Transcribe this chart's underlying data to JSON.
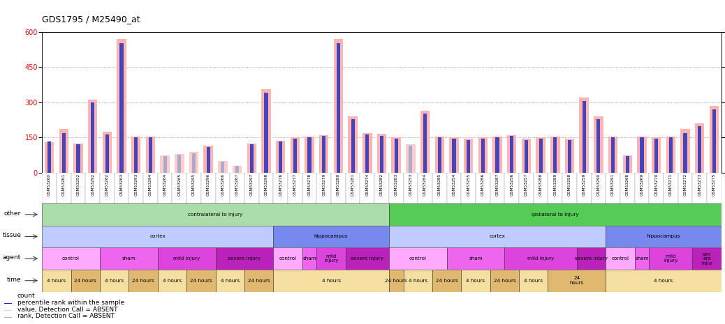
{
  "title": "GDS1795 / M25490_at",
  "samples": [
    "GSM53260",
    "GSM53261",
    "GSM53252",
    "GSM53292",
    "GSM53262",
    "GSM53263",
    "GSM53293",
    "GSM53294",
    "GSM53264",
    "GSM53265",
    "GSM53295",
    "GSM53296",
    "GSM53266",
    "GSM53267",
    "GSM53297",
    "GSM53298",
    "GSM53276",
    "GSM53277",
    "GSM53278",
    "GSM53279",
    "GSM53280",
    "GSM53281",
    "GSM53274",
    "GSM53282",
    "GSM53283",
    "GSM53253",
    "GSM53284",
    "GSM53285",
    "GSM53254",
    "GSM53255",
    "GSM53286",
    "GSM53287",
    "GSM53256",
    "GSM53257",
    "GSM53288",
    "GSM53289",
    "GSM53258",
    "GSM53259",
    "GSM53290",
    "GSM53291",
    "GSM53268",
    "GSM53269",
    "GSM53270",
    "GSM53271",
    "GSM53272",
    "GSM53273",
    "GSM53275"
  ],
  "values": [
    130,
    185,
    125,
    310,
    175,
    570,
    155,
    155,
    75,
    80,
    90,
    115,
    50,
    30,
    125,
    355,
    135,
    150,
    155,
    160,
    570,
    240,
    170,
    165,
    150,
    120,
    265,
    155,
    150,
    145,
    150,
    155,
    160,
    145,
    150,
    155,
    145,
    320,
    240,
    155,
    75,
    155,
    150,
    155,
    185,
    210,
    285
  ],
  "ranks": [
    22,
    28,
    20,
    50,
    27,
    92,
    25,
    25,
    12,
    13,
    14,
    18,
    8,
    5,
    20,
    57,
    22,
    24,
    25,
    26,
    92,
    38,
    27,
    26,
    24,
    19,
    42,
    25,
    24,
    23,
    24,
    25,
    26,
    23,
    24,
    25,
    23,
    51,
    38,
    25,
    12,
    25,
    24,
    25,
    28,
    33,
    45
  ],
  "absent_flags": [
    false,
    false,
    false,
    false,
    false,
    false,
    false,
    false,
    true,
    true,
    true,
    false,
    true,
    true,
    false,
    false,
    false,
    false,
    false,
    false,
    false,
    false,
    false,
    false,
    false,
    true,
    false,
    false,
    false,
    false,
    false,
    false,
    false,
    false,
    false,
    false,
    false,
    false,
    false,
    false,
    false,
    false,
    false,
    false,
    false,
    false,
    false
  ],
  "ylim_left": [
    0,
    600
  ],
  "ylim_right": [
    0,
    100
  ],
  "yticks_left": [
    0,
    150,
    300,
    450,
    600
  ],
  "yticks_right": [
    0,
    25,
    50,
    75,
    100
  ],
  "bar_color": "#ffb3b3",
  "rank_color": "#4444bb",
  "absent_bar_color": "#ffcccc",
  "absent_rank_color": "#aaaacc",
  "other_row": {
    "groups": [
      {
        "label": "contralateral to injury",
        "start": 0,
        "end": 24,
        "color": "#aaddaa"
      },
      {
        "label": "ipsilateral to injury",
        "start": 24,
        "end": 47,
        "color": "#55cc55"
      }
    ]
  },
  "tissue_row": {
    "groups": [
      {
        "label": "cortex",
        "start": 0,
        "end": 16,
        "color": "#c0ccff"
      },
      {
        "label": "hippocampus",
        "start": 16,
        "end": 24,
        "color": "#7788ee"
      },
      {
        "label": "cortex",
        "start": 24,
        "end": 39,
        "color": "#c0ccff"
      },
      {
        "label": "hippocampus",
        "start": 39,
        "end": 47,
        "color": "#7788ee"
      }
    ]
  },
  "agent_row": {
    "groups": [
      {
        "label": "control",
        "start": 0,
        "end": 4,
        "color": "#ffaaff"
      },
      {
        "label": "sham",
        "start": 4,
        "end": 8,
        "color": "#ee66ee"
      },
      {
        "label": "mild injury",
        "start": 8,
        "end": 12,
        "color": "#dd44dd"
      },
      {
        "label": "severe injury",
        "start": 12,
        "end": 16,
        "color": "#bb22bb"
      },
      {
        "label": "control",
        "start": 16,
        "end": 18,
        "color": "#ffaaff"
      },
      {
        "label": "sham",
        "start": 18,
        "end": 19,
        "color": "#ee66ee"
      },
      {
        "label": "mild\ninjury",
        "start": 19,
        "end": 21,
        "color": "#dd44dd"
      },
      {
        "label": "severe injury",
        "start": 21,
        "end": 24,
        "color": "#bb22bb"
      },
      {
        "label": "control",
        "start": 24,
        "end": 28,
        "color": "#ffaaff"
      },
      {
        "label": "sham",
        "start": 28,
        "end": 32,
        "color": "#ee66ee"
      },
      {
        "label": "mild injury",
        "start": 32,
        "end": 37,
        "color": "#dd44dd"
      },
      {
        "label": "severe injury",
        "start": 37,
        "end": 39,
        "color": "#bb22bb"
      },
      {
        "label": "control",
        "start": 39,
        "end": 41,
        "color": "#ffaaff"
      },
      {
        "label": "sham",
        "start": 41,
        "end": 42,
        "color": "#ee66ee"
      },
      {
        "label": "mild\ninjury",
        "start": 42,
        "end": 45,
        "color": "#dd44dd"
      },
      {
        "label": "sev\nere\ninjur",
        "start": 45,
        "end": 47,
        "color": "#bb22bb"
      }
    ]
  },
  "time_row": {
    "groups": [
      {
        "label": "4 hours",
        "start": 0,
        "end": 2,
        "color": "#f5dfa0"
      },
      {
        "label": "24 hours",
        "start": 2,
        "end": 4,
        "color": "#e0b870"
      },
      {
        "label": "4 hours",
        "start": 4,
        "end": 6,
        "color": "#f5dfa0"
      },
      {
        "label": "24 hours",
        "start": 6,
        "end": 8,
        "color": "#e0b870"
      },
      {
        "label": "4 hours",
        "start": 8,
        "end": 10,
        "color": "#f5dfa0"
      },
      {
        "label": "24 hours",
        "start": 10,
        "end": 12,
        "color": "#e0b870"
      },
      {
        "label": "4 hours",
        "start": 12,
        "end": 14,
        "color": "#f5dfa0"
      },
      {
        "label": "24 hours",
        "start": 14,
        "end": 16,
        "color": "#e0b870"
      },
      {
        "label": "4 hours",
        "start": 16,
        "end": 24,
        "color": "#f5dfa0"
      },
      {
        "label": "24 hours",
        "start": 24,
        "end": 25,
        "color": "#e0b870"
      },
      {
        "label": "4 hours",
        "start": 25,
        "end": 27,
        "color": "#f5dfa0"
      },
      {
        "label": "24 hours",
        "start": 27,
        "end": 29,
        "color": "#e0b870"
      },
      {
        "label": "4 hours",
        "start": 29,
        "end": 31,
        "color": "#f5dfa0"
      },
      {
        "label": "24 hours",
        "start": 31,
        "end": 33,
        "color": "#e0b870"
      },
      {
        "label": "4 hours",
        "start": 33,
        "end": 35,
        "color": "#f5dfa0"
      },
      {
        "label": "24\nhours",
        "start": 35,
        "end": 39,
        "color": "#e0b870"
      },
      {
        "label": "4 hours",
        "start": 39,
        "end": 47,
        "color": "#f5dfa0"
      }
    ]
  },
  "legend_items": [
    {
      "label": "count",
      "color": "#cc2222"
    },
    {
      "label": "percentile rank within the sample",
      "color": "#2222cc"
    },
    {
      "label": "value, Detection Call = ABSENT",
      "color": "#ffbbbb"
    },
    {
      "label": "rank, Detection Call = ABSENT",
      "color": "#aaaacc"
    }
  ],
  "row_labels": [
    "other",
    "tissue",
    "agent",
    "time"
  ]
}
